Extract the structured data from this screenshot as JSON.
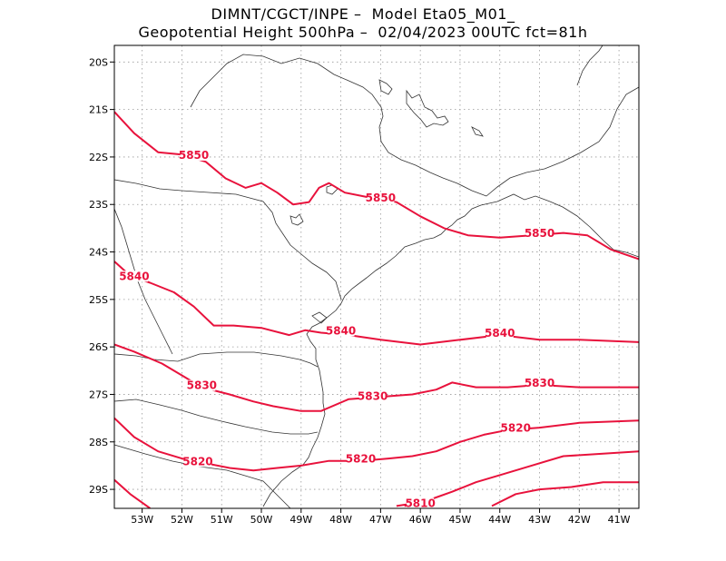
{
  "title_line1": "DIMNT/CGCT/INPE –  Model Eta05_M01_",
  "title_line2": "Geopotential Height 500hPa –  02/04/2023 00UTC fct=81h",
  "map": {
    "variable": "Geopotential Height 500hPa",
    "lon_range": [
      -53.7,
      -40.5
    ],
    "lat_range": [
      -29.4,
      -19.65
    ],
    "lon_ticks": [
      {
        "value": -53,
        "label": "53W"
      },
      {
        "value": -52,
        "label": "52W"
      },
      {
        "value": -51,
        "label": "51W"
      },
      {
        "value": -50,
        "label": "50W"
      },
      {
        "value": -49,
        "label": "49W"
      },
      {
        "value": -48,
        "label": "48W"
      },
      {
        "value": -47,
        "label": "47W"
      },
      {
        "value": -46,
        "label": "46W"
      },
      {
        "value": -45,
        "label": "45W"
      },
      {
        "value": -44,
        "label": "44W"
      },
      {
        "value": -43,
        "label": "43W"
      },
      {
        "value": -42,
        "label": "42W"
      },
      {
        "value": -41,
        "label": "41W"
      }
    ],
    "lat_ticks": [
      {
        "value": -20,
        "label": "20S"
      },
      {
        "value": -21,
        "label": "21S"
      },
      {
        "value": -22,
        "label": "22S"
      },
      {
        "value": -23,
        "label": "23S"
      },
      {
        "value": -24,
        "label": "24S"
      },
      {
        "value": -25,
        "label": "25S"
      },
      {
        "value": -26,
        "label": "26S"
      },
      {
        "value": -27,
        "label": "27S"
      },
      {
        "value": -28,
        "label": "28S"
      },
      {
        "value": -29,
        "label": "29S"
      }
    ],
    "contour_color": "#e8123c",
    "contours": [
      {
        "level": 5850,
        "labels": [
          "5850",
          "5850",
          "5850"
        ],
        "points": [
          [
            -53.7,
            -21.05
          ],
          [
            -53.2,
            -21.5
          ],
          [
            -52.6,
            -21.9
          ],
          [
            -52.0,
            -21.95
          ],
          [
            -51.4,
            -22.1
          ],
          [
            -50.9,
            -22.45
          ],
          [
            -50.4,
            -22.65
          ],
          [
            -50.0,
            -22.55
          ],
          [
            -49.6,
            -22.75
          ],
          [
            -49.2,
            -23.0
          ],
          [
            -48.8,
            -22.95
          ],
          [
            -48.55,
            -22.65
          ],
          [
            -48.3,
            -22.55
          ],
          [
            -47.9,
            -22.75
          ],
          [
            -47.3,
            -22.85
          ],
          [
            -46.6,
            -22.95
          ],
          [
            -46.0,
            -23.25
          ],
          [
            -45.4,
            -23.5
          ],
          [
            -44.8,
            -23.65
          ],
          [
            -44.0,
            -23.7
          ],
          [
            -43.2,
            -23.65
          ],
          [
            -42.4,
            -23.6
          ],
          [
            -41.8,
            -23.65
          ],
          [
            -41.2,
            -23.95
          ],
          [
            -40.5,
            -24.15
          ]
        ]
      },
      {
        "level": 5840,
        "labels": [
          "5840",
          "5840",
          "5840"
        ],
        "points": [
          [
            -53.7,
            -24.2
          ],
          [
            -53.3,
            -24.5
          ],
          [
            -52.8,
            -24.65
          ],
          [
            -52.2,
            -24.85
          ],
          [
            -51.7,
            -25.15
          ],
          [
            -51.2,
            -25.55
          ],
          [
            -50.7,
            -25.55
          ],
          [
            -50.0,
            -25.6
          ],
          [
            -49.3,
            -25.75
          ],
          [
            -48.9,
            -25.65
          ],
          [
            -48.5,
            -25.7
          ],
          [
            -47.8,
            -25.75
          ],
          [
            -47.0,
            -25.85
          ],
          [
            -46.0,
            -25.95
          ],
          [
            -45.0,
            -25.85
          ],
          [
            -44.0,
            -25.75
          ],
          [
            -43.0,
            -25.85
          ],
          [
            -42.0,
            -25.85
          ],
          [
            -40.5,
            -25.9
          ]
        ]
      },
      {
        "level": 5830,
        "labels": [
          "5830",
          "5830",
          "5830"
        ],
        "points": [
          [
            -53.7,
            -25.95
          ],
          [
            -53.2,
            -26.1
          ],
          [
            -52.5,
            -26.35
          ],
          [
            -52.0,
            -26.6
          ],
          [
            -51.5,
            -26.85
          ],
          [
            -50.8,
            -27.0
          ],
          [
            -50.2,
            -27.15
          ],
          [
            -49.7,
            -27.25
          ],
          [
            -49.0,
            -27.35
          ],
          [
            -48.5,
            -27.35
          ],
          [
            -47.8,
            -27.1
          ],
          [
            -47.0,
            -27.05
          ],
          [
            -46.2,
            -27.0
          ],
          [
            -45.6,
            -26.9
          ],
          [
            -45.2,
            -26.75
          ],
          [
            -44.6,
            -26.85
          ],
          [
            -43.8,
            -26.85
          ],
          [
            -43.0,
            -26.8
          ],
          [
            -42.0,
            -26.85
          ],
          [
            -40.5,
            -26.85
          ]
        ]
      },
      {
        "level": 5820,
        "labels": [
          "5820",
          "5820",
          "5820"
        ],
        "points": [
          [
            -53.7,
            -27.5
          ],
          [
            -53.2,
            -27.9
          ],
          [
            -52.6,
            -28.2
          ],
          [
            -52.0,
            -28.35
          ],
          [
            -51.4,
            -28.45
          ],
          [
            -50.8,
            -28.55
          ],
          [
            -50.2,
            -28.6
          ],
          [
            -49.6,
            -28.55
          ],
          [
            -49.0,
            -28.5
          ],
          [
            -48.3,
            -28.4
          ],
          [
            -47.5,
            -28.4
          ],
          [
            -46.8,
            -28.35
          ],
          [
            -46.2,
            -28.3
          ],
          [
            -45.6,
            -28.2
          ],
          [
            -45.0,
            -28.0
          ],
          [
            -44.4,
            -27.85
          ],
          [
            -43.8,
            -27.75
          ],
          [
            -43.0,
            -27.7
          ],
          [
            -42.0,
            -27.6
          ],
          [
            -40.5,
            -27.55
          ]
        ]
      },
      {
        "level": 5810,
        "labels": [
          "5810"
        ],
        "points": [
          [
            -53.7,
            -28.8
          ],
          [
            -53.3,
            -29.1
          ],
          [
            -52.8,
            -29.4
          ]
        ],
        "points2": [
          [
            -46.4,
            -29.35
          ],
          [
            -45.7,
            -29.2
          ],
          [
            -45.2,
            -29.05
          ],
          [
            -44.6,
            -28.85
          ],
          [
            -44.0,
            -28.7
          ],
          [
            -43.2,
            -28.5
          ],
          [
            -42.4,
            -28.3
          ],
          [
            -41.4,
            -28.25
          ],
          [
            -40.5,
            -28.2
          ]
        ],
        "points3": [
          [
            -44.2,
            -29.35
          ],
          [
            -43.6,
            -29.1
          ],
          [
            -43.0,
            -29.0
          ],
          [
            -42.2,
            -28.95
          ],
          [
            -41.4,
            -28.85
          ],
          [
            -40.5,
            -28.85
          ]
        ],
        "points4": [
          [
            -46.6,
            -29.35
          ],
          [
            -46.2,
            -29.3
          ]
        ]
      }
    ]
  }
}
